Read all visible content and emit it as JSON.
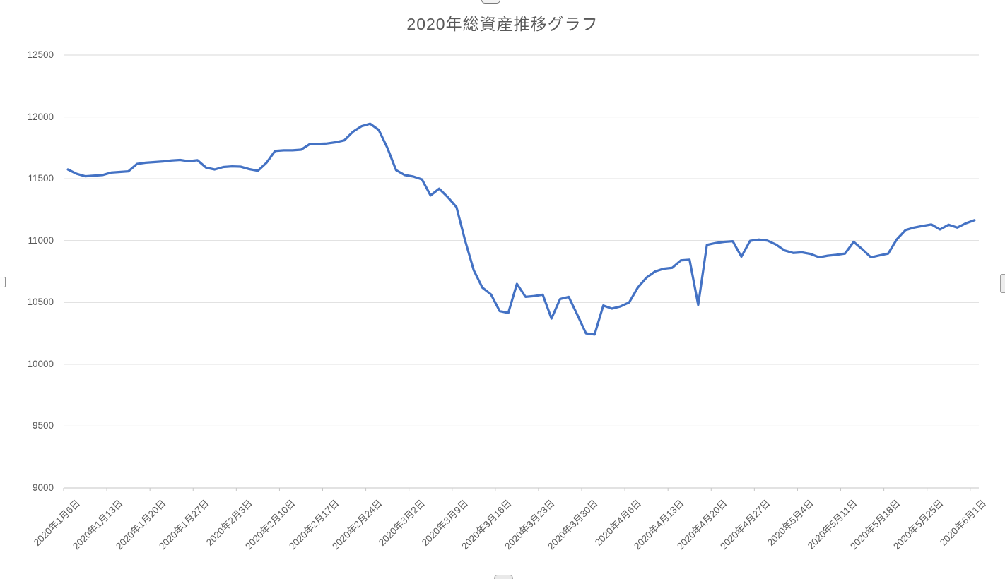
{
  "chart_data": {
    "type": "line",
    "title": "2020年総資産推移グラフ",
    "legend": "none",
    "grid": "horizontal",
    "ylim": [
      9000,
      12500
    ],
    "y_ticks": [
      9000,
      9500,
      10000,
      10500,
      11000,
      11500,
      12000,
      12500
    ],
    "x_label_interval": 5,
    "x_axis_tick_labels": [
      "2020年1月6日",
      "2020年1月13日",
      "2020年1月20日",
      "2020年1月27日",
      "2020年2月3日",
      "2020年2月10日",
      "2020年2月17日",
      "2020年2月24日",
      "2020年3月2日",
      "2020年3月9日",
      "2020年3月16日",
      "2020年3月23日",
      "2020年3月30日",
      "2020年4月6日",
      "2020年4月13日",
      "2020年4月20日",
      "2020年4月27日",
      "2020年5月4日",
      "2020年5月11日",
      "2020年5月18日",
      "2020年5月25日",
      "2020年6月1日"
    ],
    "x": [
      "2020/1/6",
      "2020/1/7",
      "2020/1/8",
      "2020/1/9",
      "2020/1/10",
      "2020/1/13",
      "2020/1/14",
      "2020/1/15",
      "2020/1/16",
      "2020/1/17",
      "2020/1/20",
      "2020/1/21",
      "2020/1/22",
      "2020/1/23",
      "2020/1/24",
      "2020/1/27",
      "2020/1/28",
      "2020/1/29",
      "2020/1/30",
      "2020/1/31",
      "2020/2/3",
      "2020/2/4",
      "2020/2/5",
      "2020/2/6",
      "2020/2/7",
      "2020/2/10",
      "2020/2/11",
      "2020/2/12",
      "2020/2/13",
      "2020/2/14",
      "2020/2/17",
      "2020/2/18",
      "2020/2/19",
      "2020/2/20",
      "2020/2/21",
      "2020/2/24",
      "2020/2/25",
      "2020/2/26",
      "2020/2/27",
      "2020/2/28",
      "2020/3/2",
      "2020/3/3",
      "2020/3/4",
      "2020/3/5",
      "2020/3/6",
      "2020/3/9",
      "2020/3/10",
      "2020/3/11",
      "2020/3/12",
      "2020/3/13",
      "2020/3/16",
      "2020/3/17",
      "2020/3/18",
      "2020/3/19",
      "2020/3/20",
      "2020/3/23",
      "2020/3/24",
      "2020/3/25",
      "2020/3/26",
      "2020/3/27",
      "2020/3/30",
      "2020/3/31",
      "2020/4/1",
      "2020/4/2",
      "2020/4/3",
      "2020/4/6",
      "2020/4/7",
      "2020/4/8",
      "2020/4/9",
      "2020/4/10",
      "2020/4/13",
      "2020/4/14",
      "2020/4/15",
      "2020/4/16",
      "2020/4/17",
      "2020/4/20",
      "2020/4/21",
      "2020/4/22",
      "2020/4/23",
      "2020/4/24",
      "2020/4/27",
      "2020/4/28",
      "2020/4/29",
      "2020/4/30",
      "2020/5/1",
      "2020/5/4",
      "2020/5/5",
      "2020/5/6",
      "2020/5/7",
      "2020/5/8",
      "2020/5/11",
      "2020/5/12",
      "2020/5/13",
      "2020/5/14",
      "2020/5/15",
      "2020/5/18",
      "2020/5/19",
      "2020/5/20",
      "2020/5/21",
      "2020/5/22",
      "2020/5/25",
      "2020/5/26",
      "2020/5/27",
      "2020/5/28",
      "2020/5/29",
      "2020/6/1"
    ],
    "series": [
      {
        "name": "総資産",
        "color": "#4472C4",
        "values": [
          11575,
          11540,
          11520,
          11525,
          11530,
          11550,
          11555,
          11560,
          11620,
          11630,
          11635,
          11640,
          11648,
          11652,
          11642,
          11650,
          11590,
          11575,
          11595,
          11600,
          11598,
          11578,
          11565,
          11630,
          11725,
          11730,
          11730,
          11735,
          11780,
          11782,
          11785,
          11795,
          11810,
          11880,
          11925,
          11945,
          11895,
          11750,
          11570,
          11530,
          11518,
          11495,
          11365,
          11420,
          11350,
          11270,
          11000,
          10760,
          10620,
          10565,
          10430,
          10415,
          10650,
          10545,
          10552,
          10562,
          10370,
          10528,
          10545,
          10400,
          10250,
          10240,
          10475,
          10450,
          10468,
          10500,
          10620,
          10700,
          10750,
          10772,
          10780,
          10840,
          10845,
          10480,
          10965,
          10980,
          10990,
          10995,
          10870,
          10998,
          11008,
          11000,
          10968,
          10920,
          10900,
          10905,
          10892,
          10865,
          10878,
          10885,
          10895,
          10990,
          10930,
          10865,
          10880,
          10895,
          11010,
          11085,
          11105,
          11118,
          11130,
          11090,
          11128,
          11105,
          11140,
          11165
        ]
      }
    ]
  },
  "colors": {
    "series_line": "#4472C4",
    "gridline": "#D9D9D9",
    "axis_line": "#C6C6C6",
    "axis_text": "#595959",
    "title_text": "#595959",
    "background": "#FFFFFF"
  },
  "ui": {
    "selection_handles": [
      "top-middle",
      "bottom-middle",
      "left-middle",
      "right-middle"
    ]
  }
}
